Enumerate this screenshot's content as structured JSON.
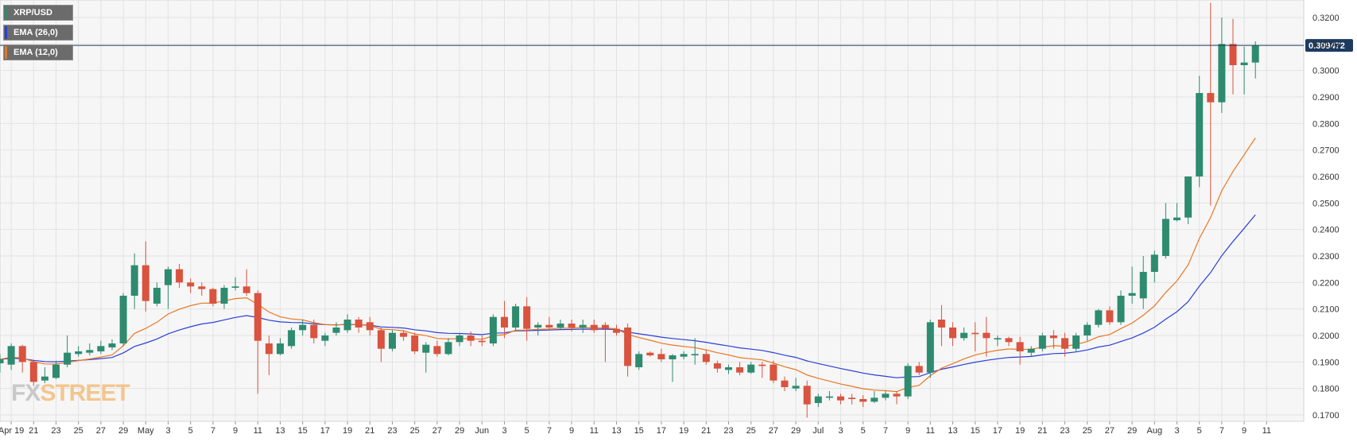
{
  "legend": [
    {
      "label": "XRP/USD",
      "color": "#2e8b6f"
    },
    {
      "label": "EMA (26,0)",
      "color": "#2a3fd6"
    },
    {
      "label": "EMA (12,0)",
      "color": "#e87722"
    }
  ],
  "watermark": {
    "fx": "FX",
    "street": "STREET"
  },
  "chart_data": {
    "type": "candlestick",
    "symbol": "XRP/USD",
    "ylim": [
      0.168,
      0.3265
    ],
    "y_ticks": [
      "0.3200",
      "0.3100",
      "0.3000",
      "0.2900",
      "0.2800",
      "0.2700",
      "0.2600",
      "0.2500",
      "0.2400",
      "0.2300",
      "0.2200",
      "0.2100",
      "0.2000",
      "0.1900",
      "0.1800",
      "0.1700"
    ],
    "x_ticks": [
      "Apr 19",
      "21",
      "23",
      "25",
      "27",
      "29",
      "May",
      "3",
      "5",
      "7",
      "9",
      "11",
      "13",
      "15",
      "17",
      "19",
      "21",
      "23",
      "25",
      "27",
      "29",
      "Jun",
      "3",
      "5",
      "7",
      "9",
      "11",
      "13",
      "15",
      "17",
      "19",
      "21",
      "23",
      "25",
      "27",
      "29",
      "Jul",
      "3",
      "5",
      "7",
      "9",
      "11",
      "13",
      "15",
      "17",
      "19",
      "21",
      "23",
      "25",
      "27",
      "29",
      "Aug",
      "3",
      "5",
      "7",
      "9",
      "11"
    ],
    "current_price": "0.309472",
    "colors": {
      "up": "#2e8b6f",
      "down": "#d9533f",
      "ema26": "#2a3fd6",
      "ema12": "#e87722",
      "price_line": "#1e3a5f"
    },
    "candles": [
      {
        "date": "2020-04-18",
        "o": 0.1895,
        "h": 0.193,
        "l": 0.186,
        "c": 0.191
      },
      {
        "date": "2020-04-19",
        "o": 0.189,
        "h": 0.197,
        "l": 0.187,
        "c": 0.196
      },
      {
        "date": "2020-04-20",
        "o": 0.196,
        "h": 0.1965,
        "l": 0.186,
        "c": 0.19
      },
      {
        "date": "2020-04-21",
        "o": 0.19,
        "h": 0.1905,
        "l": 0.181,
        "c": 0.1825
      },
      {
        "date": "2020-04-22",
        "o": 0.183,
        "h": 0.188,
        "l": 0.182,
        "c": 0.1845
      },
      {
        "date": "2020-04-23",
        "o": 0.184,
        "h": 0.1905,
        "l": 0.1835,
        "c": 0.189
      },
      {
        "date": "2020-04-24",
        "o": 0.189,
        "h": 0.2,
        "l": 0.188,
        "c": 0.1935
      },
      {
        "date": "2020-04-25",
        "o": 0.193,
        "h": 0.196,
        "l": 0.192,
        "c": 0.194
      },
      {
        "date": "2020-04-26",
        "o": 0.1935,
        "h": 0.197,
        "l": 0.1925,
        "c": 0.1945
      },
      {
        "date": "2020-04-27",
        "o": 0.194,
        "h": 0.198,
        "l": 0.193,
        "c": 0.196
      },
      {
        "date": "2020-04-28",
        "o": 0.1955,
        "h": 0.1985,
        "l": 0.1945,
        "c": 0.197
      },
      {
        "date": "2020-04-29",
        "o": 0.197,
        "h": 0.216,
        "l": 0.196,
        "c": 0.215
      },
      {
        "date": "2020-04-30",
        "o": 0.215,
        "h": 0.231,
        "l": 0.21,
        "c": 0.2265
      },
      {
        "date": "2020-05-01",
        "o": 0.2265,
        "h": 0.2355,
        "l": 0.209,
        "c": 0.213
      },
      {
        "date": "2020-05-02",
        "o": 0.212,
        "h": 0.22,
        "l": 0.211,
        "c": 0.218
      },
      {
        "date": "2020-05-03",
        "o": 0.219,
        "h": 0.226,
        "l": 0.21,
        "c": 0.225
      },
      {
        "date": "2020-05-04",
        "o": 0.225,
        "h": 0.227,
        "l": 0.218,
        "c": 0.22
      },
      {
        "date": "2020-05-05",
        "o": 0.22,
        "h": 0.2215,
        "l": 0.216,
        "c": 0.2185
      },
      {
        "date": "2020-05-06",
        "o": 0.2185,
        "h": 0.22,
        "l": 0.215,
        "c": 0.2175
      },
      {
        "date": "2020-05-07",
        "o": 0.2175,
        "h": 0.218,
        "l": 0.211,
        "c": 0.212
      },
      {
        "date": "2020-05-08",
        "o": 0.212,
        "h": 0.219,
        "l": 0.21,
        "c": 0.218
      },
      {
        "date": "2020-05-09",
        "o": 0.218,
        "h": 0.222,
        "l": 0.217,
        "c": 0.2185
      },
      {
        "date": "2020-05-10",
        "o": 0.2185,
        "h": 0.225,
        "l": 0.215,
        "c": 0.216
      },
      {
        "date": "2020-05-11",
        "o": 0.216,
        "h": 0.217,
        "l": 0.178,
        "c": 0.198
      },
      {
        "date": "2020-05-12",
        "o": 0.197,
        "h": 0.2,
        "l": 0.185,
        "c": 0.193
      },
      {
        "date": "2020-05-13",
        "o": 0.193,
        "h": 0.199,
        "l": 0.1925,
        "c": 0.197
      },
      {
        "date": "2020-05-14",
        "o": 0.196,
        "h": 0.203,
        "l": 0.195,
        "c": 0.202
      },
      {
        "date": "2020-05-15",
        "o": 0.202,
        "h": 0.206,
        "l": 0.2,
        "c": 0.204
      },
      {
        "date": "2020-05-16",
        "o": 0.204,
        "h": 0.206,
        "l": 0.197,
        "c": 0.199
      },
      {
        "date": "2020-05-17",
        "o": 0.198,
        "h": 0.201,
        "l": 0.196,
        "c": 0.2
      },
      {
        "date": "2020-05-18",
        "o": 0.201,
        "h": 0.205,
        "l": 0.2,
        "c": 0.203
      },
      {
        "date": "2020-05-19",
        "o": 0.202,
        "h": 0.208,
        "l": 0.201,
        "c": 0.206
      },
      {
        "date": "2020-05-20",
        "o": 0.206,
        "h": 0.207,
        "l": 0.201,
        "c": 0.203
      },
      {
        "date": "2020-05-21",
        "o": 0.205,
        "h": 0.207,
        "l": 0.2,
        "c": 0.202
      },
      {
        "date": "2020-05-22",
        "o": 0.202,
        "h": 0.203,
        "l": 0.19,
        "c": 0.195
      },
      {
        "date": "2020-05-23",
        "o": 0.195,
        "h": 0.202,
        "l": 0.194,
        "c": 0.201
      },
      {
        "date": "2020-05-24",
        "o": 0.201,
        "h": 0.202,
        "l": 0.198,
        "c": 0.1995
      },
      {
        "date": "2020-05-25",
        "o": 0.2,
        "h": 0.201,
        "l": 0.193,
        "c": 0.194
      },
      {
        "date": "2020-05-26",
        "o": 0.1935,
        "h": 0.1975,
        "l": 0.186,
        "c": 0.1965
      },
      {
        "date": "2020-05-27",
        "o": 0.196,
        "h": 0.198,
        "l": 0.192,
        "c": 0.193
      },
      {
        "date": "2020-05-28",
        "o": 0.193,
        "h": 0.199,
        "l": 0.1925,
        "c": 0.1975
      },
      {
        "date": "2020-05-29",
        "o": 0.1975,
        "h": 0.201,
        "l": 0.196,
        "c": 0.2
      },
      {
        "date": "2020-05-30",
        "o": 0.2,
        "h": 0.2015,
        "l": 0.196,
        "c": 0.198
      },
      {
        "date": "2020-05-31",
        "o": 0.198,
        "h": 0.2,
        "l": 0.196,
        "c": 0.1975
      },
      {
        "date": "2020-06-01",
        "o": 0.197,
        "h": 0.208,
        "l": 0.196,
        "c": 0.207
      },
      {
        "date": "2020-06-02",
        "o": 0.207,
        "h": 0.213,
        "l": 0.199,
        "c": 0.203
      },
      {
        "date": "2020-06-03",
        "o": 0.203,
        "h": 0.212,
        "l": 0.202,
        "c": 0.211
      },
      {
        "date": "2020-06-04",
        "o": 0.211,
        "h": 0.2145,
        "l": 0.198,
        "c": 0.2025
      },
      {
        "date": "2020-06-05",
        "o": 0.203,
        "h": 0.205,
        "l": 0.2,
        "c": 0.204
      },
      {
        "date": "2020-06-06",
        "o": 0.204,
        "h": 0.207,
        "l": 0.202,
        "c": 0.203
      },
      {
        "date": "2020-06-07",
        "o": 0.203,
        "h": 0.206,
        "l": 0.202,
        "c": 0.2045
      },
      {
        "date": "2020-06-08",
        "o": 0.2045,
        "h": 0.206,
        "l": 0.2015,
        "c": 0.203
      },
      {
        "date": "2020-06-09",
        "o": 0.203,
        "h": 0.206,
        "l": 0.201,
        "c": 0.204
      },
      {
        "date": "2020-06-10",
        "o": 0.204,
        "h": 0.206,
        "l": 0.201,
        "c": 0.202
      },
      {
        "date": "2020-06-11",
        "o": 0.204,
        "h": 0.205,
        "l": 0.19,
        "c": 0.2025
      },
      {
        "date": "2020-06-12",
        "o": 0.2025,
        "h": 0.204,
        "l": 0.2,
        "c": 0.201
      },
      {
        "date": "2020-06-13",
        "o": 0.203,
        "h": 0.2045,
        "l": 0.1845,
        "c": 0.1885
      },
      {
        "date": "2020-06-14",
        "o": 0.188,
        "h": 0.194,
        "l": 0.187,
        "c": 0.193
      },
      {
        "date": "2020-06-15",
        "o": 0.1935,
        "h": 0.194,
        "l": 0.192,
        "c": 0.1925
      },
      {
        "date": "2020-06-16",
        "o": 0.193,
        "h": 0.195,
        "l": 0.19,
        "c": 0.191
      },
      {
        "date": "2020-06-17",
        "o": 0.191,
        "h": 0.193,
        "l": 0.1825,
        "c": 0.1925
      },
      {
        "date": "2020-06-18",
        "o": 0.192,
        "h": 0.194,
        "l": 0.191,
        "c": 0.193
      },
      {
        "date": "2020-06-19",
        "o": 0.1925,
        "h": 0.199,
        "l": 0.189,
        "c": 0.193
      },
      {
        "date": "2020-06-20",
        "o": 0.193,
        "h": 0.1945,
        "l": 0.189,
        "c": 0.19
      },
      {
        "date": "2020-06-21",
        "o": 0.1895,
        "h": 0.1905,
        "l": 0.186,
        "c": 0.1875
      },
      {
        "date": "2020-06-22",
        "o": 0.187,
        "h": 0.189,
        "l": 0.1855,
        "c": 0.188
      },
      {
        "date": "2020-06-23",
        "o": 0.188,
        "h": 0.19,
        "l": 0.185,
        "c": 0.186
      },
      {
        "date": "2020-06-24",
        "o": 0.186,
        "h": 0.19,
        "l": 0.1855,
        "c": 0.189
      },
      {
        "date": "2020-06-25",
        "o": 0.189,
        "h": 0.19,
        "l": 0.184,
        "c": 0.1885
      },
      {
        "date": "2020-06-26",
        "o": 0.189,
        "h": 0.1905,
        "l": 0.182,
        "c": 0.183
      },
      {
        "date": "2020-06-27",
        "o": 0.183,
        "h": 0.1845,
        "l": 0.179,
        "c": 0.1805
      },
      {
        "date": "2020-06-28",
        "o": 0.18,
        "h": 0.184,
        "l": 0.179,
        "c": 0.181
      },
      {
        "date": "2020-06-29",
        "o": 0.181,
        "h": 0.183,
        "l": 0.169,
        "c": 0.174
      },
      {
        "date": "2020-06-30",
        "o": 0.1745,
        "h": 0.178,
        "l": 0.173,
        "c": 0.177
      },
      {
        "date": "2020-07-01",
        "o": 0.1765,
        "h": 0.179,
        "l": 0.1755,
        "c": 0.177
      },
      {
        "date": "2020-07-02",
        "o": 0.177,
        "h": 0.178,
        "l": 0.174,
        "c": 0.1755
      },
      {
        "date": "2020-07-03",
        "o": 0.1765,
        "h": 0.178,
        "l": 0.174,
        "c": 0.176
      },
      {
        "date": "2020-07-04",
        "o": 0.176,
        "h": 0.1775,
        "l": 0.173,
        "c": 0.175
      },
      {
        "date": "2020-07-05",
        "o": 0.175,
        "h": 0.179,
        "l": 0.1745,
        "c": 0.1765
      },
      {
        "date": "2020-07-06",
        "o": 0.1765,
        "h": 0.179,
        "l": 0.1755,
        "c": 0.178
      },
      {
        "date": "2020-07-07",
        "o": 0.178,
        "h": 0.179,
        "l": 0.174,
        "c": 0.177
      },
      {
        "date": "2020-07-08",
        "o": 0.177,
        "h": 0.1895,
        "l": 0.176,
        "c": 0.1885
      },
      {
        "date": "2020-07-09",
        "o": 0.1885,
        "h": 0.19,
        "l": 0.185,
        "c": 0.186
      },
      {
        "date": "2020-07-10",
        "o": 0.186,
        "h": 0.206,
        "l": 0.184,
        "c": 0.205
      },
      {
        "date": "2020-07-11",
        "o": 0.206,
        "h": 0.2115,
        "l": 0.196,
        "c": 0.203
      },
      {
        "date": "2020-07-12",
        "o": 0.203,
        "h": 0.205,
        "l": 0.196,
        "c": 0.199
      },
      {
        "date": "2020-07-13",
        "o": 0.199,
        "h": 0.203,
        "l": 0.198,
        "c": 0.201
      },
      {
        "date": "2020-07-14",
        "o": 0.201,
        "h": 0.205,
        "l": 0.194,
        "c": 0.2005
      },
      {
        "date": "2020-07-15",
        "o": 0.201,
        "h": 0.207,
        "l": 0.192,
        "c": 0.199
      },
      {
        "date": "2020-07-16",
        "o": 0.1985,
        "h": 0.2,
        "l": 0.196,
        "c": 0.199
      },
      {
        "date": "2020-07-17",
        "o": 0.199,
        "h": 0.1995,
        "l": 0.196,
        "c": 0.1975
      },
      {
        "date": "2020-07-18",
        "o": 0.1975,
        "h": 0.1995,
        "l": 0.189,
        "c": 0.194
      },
      {
        "date": "2020-07-19",
        "o": 0.1935,
        "h": 0.196,
        "l": 0.192,
        "c": 0.195
      },
      {
        "date": "2020-07-20",
        "o": 0.195,
        "h": 0.201,
        "l": 0.194,
        "c": 0.2
      },
      {
        "date": "2020-07-21",
        "o": 0.2,
        "h": 0.202,
        "l": 0.195,
        "c": 0.199
      },
      {
        "date": "2020-07-22",
        "o": 0.199,
        "h": 0.201,
        "l": 0.192,
        "c": 0.195
      },
      {
        "date": "2020-07-23",
        "o": 0.195,
        "h": 0.201,
        "l": 0.194,
        "c": 0.2
      },
      {
        "date": "2020-07-24",
        "o": 0.2,
        "h": 0.205,
        "l": 0.198,
        "c": 0.204
      },
      {
        "date": "2020-07-25",
        "o": 0.204,
        "h": 0.21,
        "l": 0.203,
        "c": 0.2095
      },
      {
        "date": "2020-07-26",
        "o": 0.2095,
        "h": 0.211,
        "l": 0.204,
        "c": 0.205
      },
      {
        "date": "2020-07-27",
        "o": 0.205,
        "h": 0.217,
        "l": 0.204,
        "c": 0.215
      },
      {
        "date": "2020-07-28",
        "o": 0.215,
        "h": 0.226,
        "l": 0.212,
        "c": 0.216
      },
      {
        "date": "2020-07-29",
        "o": 0.214,
        "h": 0.23,
        "l": 0.21,
        "c": 0.224
      },
      {
        "date": "2020-07-30",
        "o": 0.224,
        "h": 0.232,
        "l": 0.22,
        "c": 0.2305
      },
      {
        "date": "2020-07-31",
        "o": 0.23,
        "h": 0.25,
        "l": 0.229,
        "c": 0.244
      },
      {
        "date": "2020-08-01",
        "o": 0.2435,
        "h": 0.25,
        "l": 0.243,
        "c": 0.2445
      },
      {
        "date": "2020-08-02",
        "o": 0.2445,
        "h": 0.26,
        "l": 0.242,
        "c": 0.26
      },
      {
        "date": "2020-08-03",
        "o": 0.26,
        "h": 0.298,
        "l": 0.256,
        "c": 0.2915
      },
      {
        "date": "2020-08-04",
        "o": 0.2915,
        "h": 0.3255,
        "l": 0.249,
        "c": 0.288
      },
      {
        "date": "2020-08-05",
        "o": 0.288,
        "h": 0.32,
        "l": 0.284,
        "c": 0.31
      },
      {
        "date": "2020-08-06",
        "o": 0.31,
        "h": 0.3195,
        "l": 0.291,
        "c": 0.302
      },
      {
        "date": "2020-08-07",
        "o": 0.302,
        "h": 0.309,
        "l": 0.291,
        "c": 0.303
      },
      {
        "date": "2020-08-08",
        "o": 0.303,
        "h": 0.311,
        "l": 0.297,
        "c": 0.3095
      }
    ]
  }
}
